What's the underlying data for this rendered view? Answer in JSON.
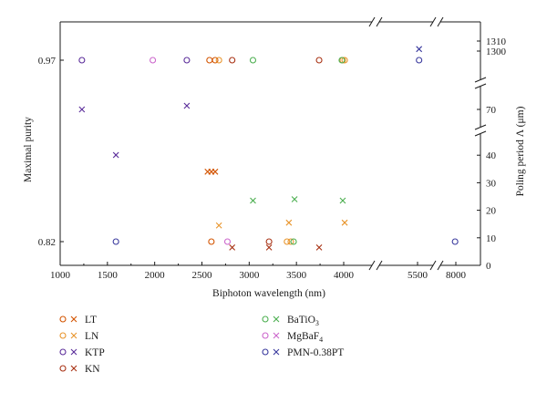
{
  "chart_data": {
    "type": "scatter",
    "xlabel": "Biphoton wavelength (nm)",
    "ylabel_left": "Maximal purity",
    "ylabel_right": "Poling period Λ (μm)",
    "x_ticks": [
      "1000",
      "1500",
      "2000",
      "2500",
      "3000",
      "3500",
      "4000",
      "5500",
      "8000"
    ],
    "y_left_ticks": [
      "0.97",
      "0.82"
    ],
    "y_right_ticks": [
      "0",
      "10",
      "20",
      "30",
      "40",
      "70",
      "1300",
      "1310"
    ],
    "x_scale": "broken",
    "right_axis_scale": "broken",
    "grid": false,
    "legend_position": "bottom",
    "series": [
      {
        "name": "LT",
        "color": "#d35400",
        "purity": [
          {
            "x": 2580,
            "y": 0.97
          },
          {
            "x": 2640,
            "y": 0.97
          },
          {
            "x": 2600,
            "y": 0.82
          }
        ],
        "period": [
          {
            "x": 2560,
            "y": 34
          },
          {
            "x": 2600,
            "y": 34
          },
          {
            "x": 2640,
            "y": 34
          }
        ]
      },
      {
        "name": "LN",
        "color": "#e8952c",
        "purity": [
          {
            "x": 2680,
            "y": 0.97
          },
          {
            "x": 3400,
            "y": 0.82
          },
          {
            "x": 3990,
            "y": 0.97
          },
          {
            "x": 4020,
            "y": 0.97
          },
          {
            "x": 3440,
            "y": 0.82
          }
        ],
        "period": [
          {
            "x": 2680,
            "y": 14.5
          },
          {
            "x": 3420,
            "y": 15.5
          },
          {
            "x": 4020,
            "y": 15.5
          }
        ]
      },
      {
        "name": "KTP",
        "color": "#5b2d9a",
        "purity": [
          {
            "x": 1230,
            "y": 0.97
          },
          {
            "x": 2340,
            "y": 0.97
          }
        ],
        "period": [
          {
            "x": 1230,
            "y": 70
          },
          {
            "x": 1590,
            "y": 45
          },
          {
            "x": 2340,
            "y": 72
          }
        ]
      },
      {
        "name": "KN",
        "color": "#a83214",
        "purity": [
          {
            "x": 2820,
            "y": 0.97
          },
          {
            "x": 3210,
            "y": 0.82
          },
          {
            "x": 3740,
            "y": 0.97
          }
        ],
        "period": [
          {
            "x": 2820,
            "y": 6.5
          },
          {
            "x": 3210,
            "y": 6.5
          },
          {
            "x": 3740,
            "y": 6.5
          }
        ]
      },
      {
        "name": "BaTiO3",
        "color": "#4caf50",
        "purity": [
          {
            "x": 3040,
            "y": 0.97
          },
          {
            "x": 3470,
            "y": 0.82
          },
          {
            "x": 3980,
            "y": 0.97
          }
        ],
        "period": [
          {
            "x": 3040,
            "y": 23.5
          },
          {
            "x": 3480,
            "y": 24
          },
          {
            "x": 3990,
            "y": 23.5
          }
        ]
      },
      {
        "name": "MgBaF4",
        "color": "#cc66cc",
        "purity": [
          {
            "x": 1980,
            "y": 0.97
          },
          {
            "x": 2770,
            "y": 0.82
          }
        ],
        "period": []
      },
      {
        "name": "PMN-0.38PT",
        "color": "#3a3a9e",
        "purity": [
          {
            "x": 1590,
            "y": 0.82
          },
          {
            "x": 5600,
            "y": 0.97
          },
          {
            "x": 7950,
            "y": 0.82
          }
        ],
        "period": [
          {
            "x": 5600,
            "y": 1302
          }
        ]
      }
    ]
  },
  "legend": [
    {
      "name": "LT",
      "label": "LT",
      "color": "#d35400"
    },
    {
      "name": "LN",
      "label": "LN",
      "color": "#e8952c"
    },
    {
      "name": "KTP",
      "label": "KTP",
      "color": "#5b2d9a"
    },
    {
      "name": "KN",
      "label": "KN",
      "color": "#a83214"
    },
    {
      "name": "BaTiO3",
      "label": "BaTiO",
      "sub": "3",
      "color": "#4caf50"
    },
    {
      "name": "MgBaF4",
      "label": "MgBaF",
      "sub": "4",
      "color": "#cc66cc"
    },
    {
      "name": "PMN-0.38PT",
      "label": "PMN-0.38PT",
      "color": "#3a3a9e"
    }
  ]
}
